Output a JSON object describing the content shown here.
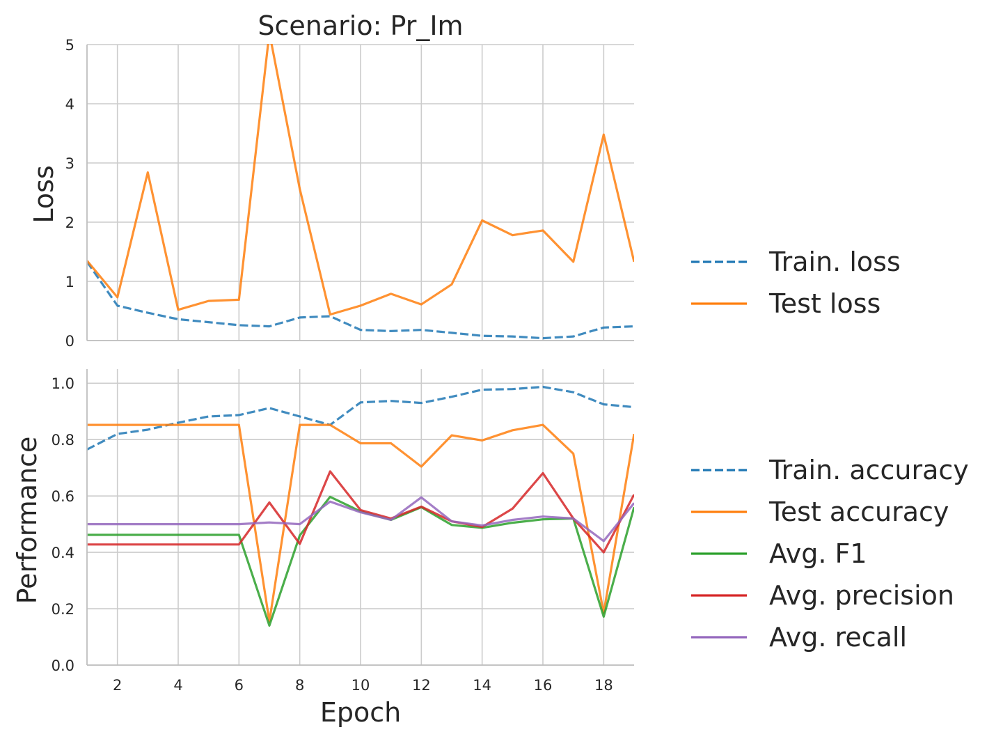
{
  "title": "Scenario: Pr_Im",
  "x_label": "Epoch",
  "chart_data": [
    {
      "type": "line",
      "panel": "top",
      "ylabel": "Loss",
      "xlim": [
        1,
        19
      ],
      "ylim": [
        0,
        5
      ],
      "xticks": [
        2,
        4,
        6,
        8,
        10,
        12,
        14,
        16,
        18
      ],
      "yticks": [
        0,
        1,
        2,
        3,
        4,
        5
      ],
      "grid": true,
      "legend_position": "right",
      "x": [
        1,
        2,
        3,
        4,
        5,
        6,
        7,
        8,
        9,
        10,
        11,
        12,
        13,
        14,
        15,
        16,
        17,
        18,
        19
      ],
      "series": [
        {
          "name": "Train. loss",
          "color": "#1f77b4",
          "dash": true,
          "values": [
            1.33,
            0.59,
            0.47,
            0.36,
            0.31,
            0.26,
            0.24,
            0.39,
            0.41,
            0.18,
            0.16,
            0.18,
            0.13,
            0.08,
            0.07,
            0.04,
            0.07,
            0.22,
            0.24
          ]
        },
        {
          "name": "Test loss",
          "color": "#ff7f0e",
          "dash": false,
          "values": [
            1.35,
            0.73,
            2.84,
            0.52,
            0.67,
            0.69,
            5.2,
            2.56,
            0.44,
            0.59,
            0.79,
            0.61,
            0.95,
            2.03,
            1.78,
            1.86,
            1.33,
            3.48,
            1.33
          ]
        }
      ]
    },
    {
      "type": "line",
      "panel": "bottom",
      "ylabel": "Performance",
      "xlabel": "Epoch",
      "xlim": [
        1,
        19
      ],
      "ylim": [
        0,
        1.05
      ],
      "xticks": [
        2,
        4,
        6,
        8,
        10,
        12,
        14,
        16,
        18
      ],
      "yticks": [
        0.0,
        0.2,
        0.4,
        0.6,
        0.8,
        1.0
      ],
      "grid": true,
      "legend_position": "right",
      "x": [
        1,
        2,
        3,
        4,
        5,
        6,
        7,
        8,
        9,
        10,
        11,
        12,
        13,
        14,
        15,
        16,
        17,
        18,
        19
      ],
      "series": [
        {
          "name": "Train. accuracy",
          "color": "#1f77b4",
          "dash": true,
          "values": [
            0.765,
            0.82,
            0.835,
            0.86,
            0.882,
            0.887,
            0.912,
            0.882,
            0.852,
            0.932,
            0.937,
            0.93,
            0.952,
            0.977,
            0.979,
            0.987,
            0.968,
            0.925,
            0.915
          ]
        },
        {
          "name": "Test accuracy",
          "color": "#ff7f0e",
          "dash": false,
          "values": [
            0.852,
            0.852,
            0.852,
            0.852,
            0.852,
            0.852,
            0.155,
            0.852,
            0.852,
            0.787,
            0.787,
            0.704,
            0.815,
            0.797,
            0.833,
            0.852,
            0.75,
            0.185,
            0.82
          ]
        },
        {
          "name": "Avg. F1",
          "color": "#2ca02c",
          "dash": false,
          "values": [
            0.462,
            0.462,
            0.462,
            0.462,
            0.462,
            0.462,
            0.14,
            0.46,
            0.597,
            0.545,
            0.515,
            0.56,
            0.497,
            0.487,
            0.505,
            0.517,
            0.52,
            0.172,
            0.56
          ]
        },
        {
          "name": "Avg. precision",
          "color": "#d62728",
          "dash": false,
          "values": [
            0.428,
            0.428,
            0.428,
            0.428,
            0.428,
            0.428,
            0.577,
            0.43,
            0.687,
            0.55,
            0.52,
            0.562,
            0.51,
            0.49,
            0.555,
            0.681,
            0.52,
            0.4,
            0.605
          ]
        },
        {
          "name": "Avg. recall",
          "color": "#9467bd",
          "dash": false,
          "values": [
            0.5,
            0.5,
            0.5,
            0.5,
            0.5,
            0.5,
            0.506,
            0.5,
            0.58,
            0.542,
            0.515,
            0.595,
            0.51,
            0.495,
            0.515,
            0.527,
            0.52,
            0.44,
            0.575
          ]
        }
      ]
    }
  ]
}
